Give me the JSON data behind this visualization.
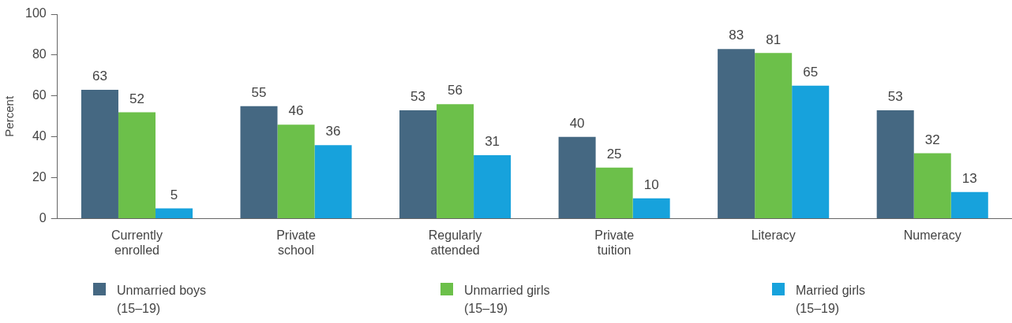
{
  "chart_data": {
    "type": "bar",
    "ylabel": "Percent",
    "categories": [
      "Currently enrolled",
      "Private school",
      "Regularly attended",
      "Private tuition",
      "Literacy",
      "Numeracy"
    ],
    "series": [
      {
        "name": "Unmarried boys (15–19)",
        "color": "#456882",
        "values": [
          63,
          55,
          53,
          40,
          83,
          53
        ]
      },
      {
        "name": "Unmarried girls (15–19)",
        "color": "#6cc04a",
        "values": [
          52,
          46,
          56,
          25,
          81,
          32
        ]
      },
      {
        "name": "Married girls (15–19)",
        "color": "#17a2dc",
        "values": [
          5,
          36,
          31,
          10,
          65,
          13
        ]
      }
    ],
    "ylim": [
      0,
      100
    ],
    "yticks": [
      0,
      20,
      40,
      60,
      80,
      100
    ],
    "grid": false,
    "legend": "bottom",
    "data_labels": true
  }
}
